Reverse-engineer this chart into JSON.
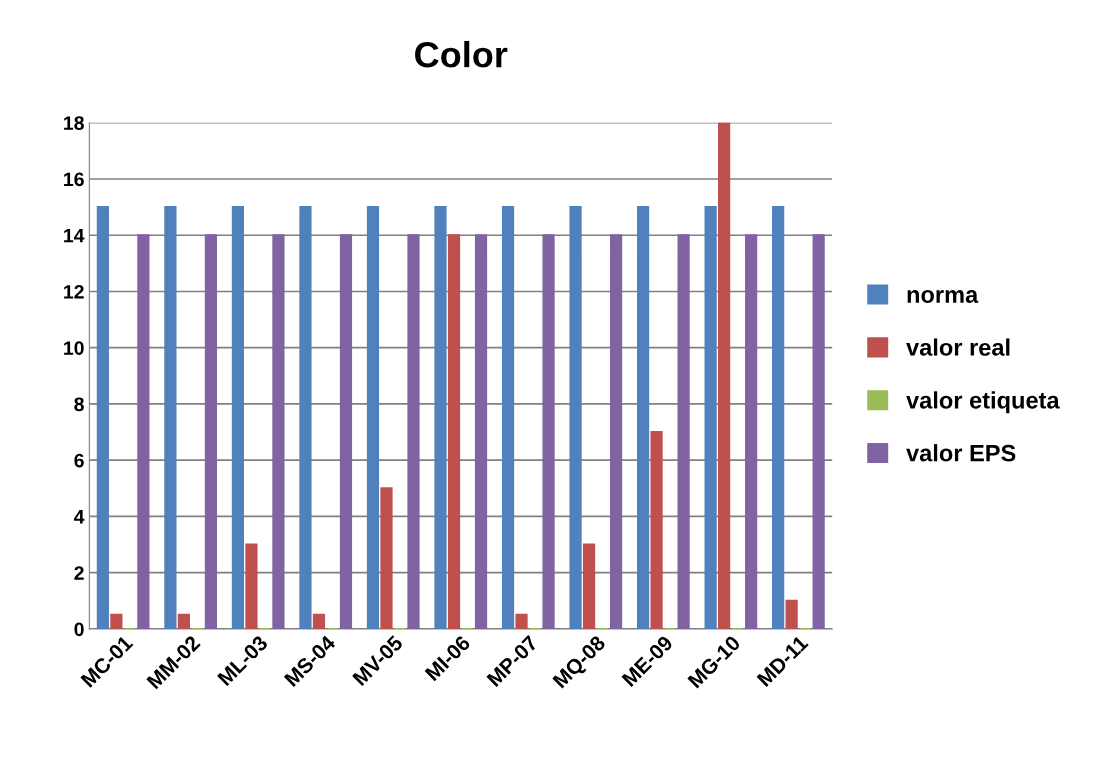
{
  "chart_data": {
    "type": "bar",
    "title": "Color",
    "categories": [
      "MC-01",
      "MM-02",
      "ML-03",
      "MS-04",
      "MV-05",
      "MI-06",
      "MP-07",
      "MQ-08",
      "ME-09",
      "MG-10",
      "MD-11"
    ],
    "series": [
      {
        "name": "norma",
        "color": "#4f81bd",
        "values": [
          15,
          15,
          15,
          15,
          15,
          15,
          15,
          15,
          15,
          15,
          15
        ]
      },
      {
        "name": "valor real",
        "color": "#c0504d",
        "values": [
          0.5,
          0.5,
          3,
          0.5,
          5,
          14,
          0.5,
          3,
          7,
          18,
          1
        ]
      },
      {
        "name": "valor etiqueta",
        "color": "#9bbb59",
        "values": [
          0,
          0,
          0,
          0,
          0,
          0,
          0,
          0,
          0,
          0,
          0
        ]
      },
      {
        "name": "valor EPS",
        "color": "#8064a2",
        "values": [
          14,
          14,
          14,
          14,
          14,
          14,
          14,
          14,
          14,
          14,
          14
        ]
      }
    ],
    "ylim": [
      0,
      18
    ],
    "yticks": [
      0,
      2,
      4,
      6,
      8,
      10,
      12,
      14,
      16,
      18
    ],
    "grid": "y",
    "legend": "right"
  }
}
